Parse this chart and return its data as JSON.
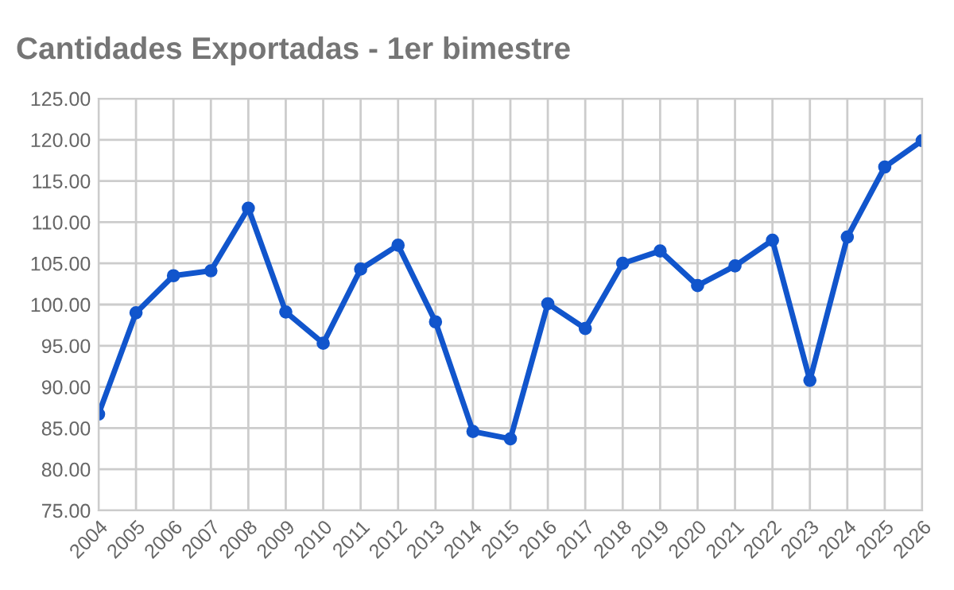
{
  "chart_data": {
    "type": "line",
    "title": "Cantidades Exportadas - 1er bimestre",
    "categories": [
      "2004",
      "2005",
      "2006",
      "2007",
      "2008",
      "2009",
      "2010",
      "2011",
      "2012",
      "2013",
      "2014",
      "2015",
      "2016",
      "2017",
      "2018",
      "2019",
      "2020",
      "2021",
      "2022",
      "2023",
      "2024",
      "2025",
      "2026"
    ],
    "series": [
      {
        "color": "#1155cc",
        "values": [
          86.7,
          99.0,
          103.5,
          104.1,
          111.7,
          99.1,
          95.3,
          104.3,
          107.2,
          97.9,
          84.6,
          83.7,
          100.1,
          97.1,
          105.0,
          106.5,
          102.3,
          104.7,
          107.8,
          90.8,
          108.2,
          116.7,
          119.9
        ]
      }
    ],
    "ylim": [
      75,
      125
    ],
    "yticks": [
      {
        "value": 75,
        "label": "75.00"
      },
      {
        "value": 80,
        "label": "80.00"
      },
      {
        "value": 85,
        "label": "85.00"
      },
      {
        "value": 90,
        "label": "90.00"
      },
      {
        "value": 95,
        "label": "95.00"
      },
      {
        "value": 100,
        "label": "100.00"
      },
      {
        "value": 105,
        "label": "105.00"
      },
      {
        "value": 110,
        "label": "110.00"
      },
      {
        "value": 115,
        "label": "115.00"
      },
      {
        "value": 120,
        "label": "120.00"
      },
      {
        "value": 125,
        "label": "125.00"
      }
    ],
    "grid": true,
    "marker": "circle",
    "line_style": "solid",
    "legend": false
  }
}
